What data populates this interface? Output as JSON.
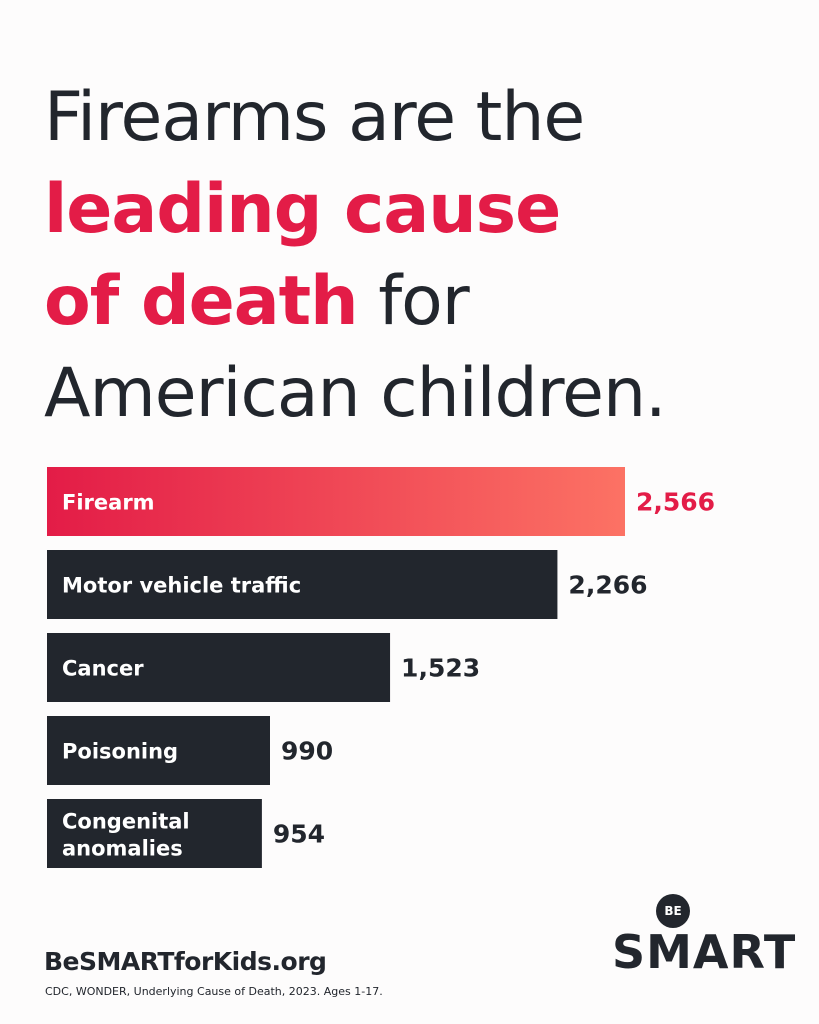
{
  "headline": {
    "line1": "Firearms are the",
    "line2": "leading cause",
    "line3_highlight": "of death",
    "line3_rest": " for",
    "line4": "American children."
  },
  "chart_data": {
    "type": "bar",
    "orientation": "horizontal",
    "categories": [
      "Firearm",
      "Motor vehicle traffic",
      "Cancer",
      "Poisoning",
      "Congenital anomalies"
    ],
    "value_labels": [
      "2,566",
      "2,266",
      "1,523",
      "990",
      "954"
    ],
    "values": [
      2566,
      2266,
      1523,
      990,
      954
    ],
    "highlight_index": 0,
    "highlight_gradient": [
      "#e31c47",
      "#fc7264"
    ],
    "bar_color": "#22262d",
    "highlight_text_color": "#e31c47"
  },
  "footer": {
    "site": "BeSMARTforKids.org",
    "source": "CDC, WONDER, Underlying Cause of Death, 2023. Ages 1-17."
  },
  "logo": {
    "top": "BE",
    "word": "SMART"
  },
  "colors": {
    "red": "#e31c47",
    "dark": "#22262d",
    "background": "#fdfcfc"
  }
}
